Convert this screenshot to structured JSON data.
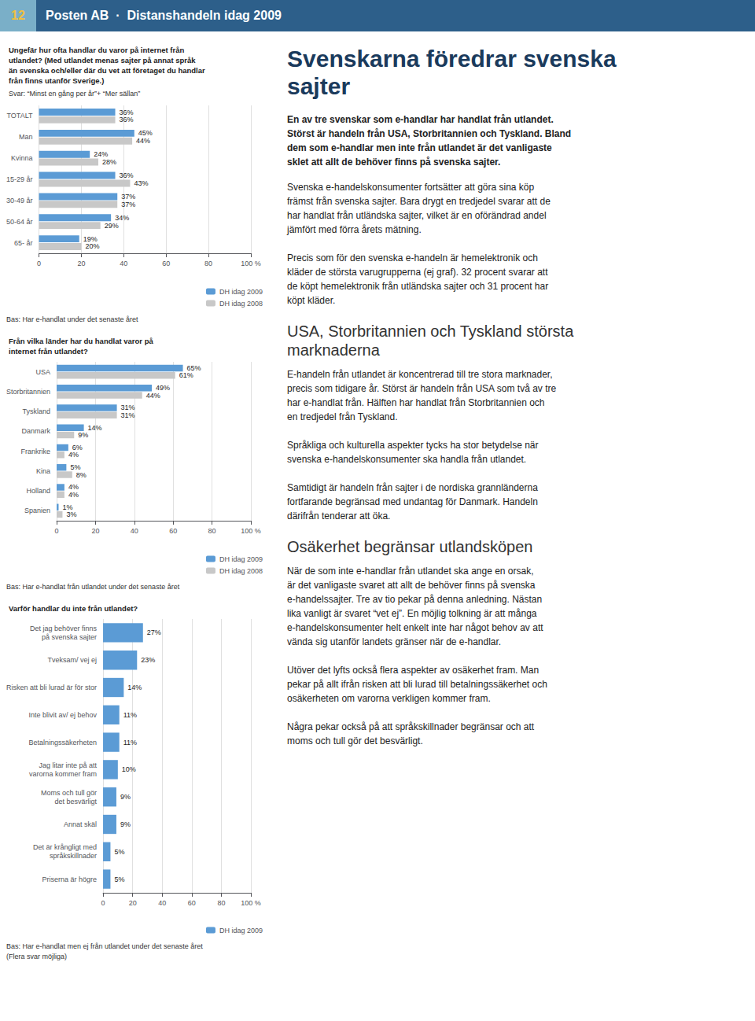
{
  "chart_data": [
    {
      "type": "bar",
      "orientation": "horizontal",
      "title": "Ungefär hur ofta handlar du varor på internet från\nutlandet? (Med utlandet menas sajter på annat språk\nän svenska och/eller där du vet att företaget du handlar\nfrån finns utanför Sverige.)",
      "subtitle": "Svar: “Minst en gång per år”+ “Mer sällan”",
      "annotations": [
        "Bas: Har e-handlat under det senaste året"
      ],
      "categories": [
        "TOTALT",
        "Man",
        "Kvinna",
        "15-29 år",
        "30-49 år",
        "50-64 år",
        "65- år"
      ],
      "series": [
        {
          "name": "DH idag 2009",
          "color": "#5b9bd5",
          "values": [
            36,
            45,
            24,
            36,
            37,
            34,
            19
          ],
          "value_labels": [
            "36%",
            "45%",
            "24%",
            "36%",
            "37%",
            "34%",
            "19%"
          ]
        },
        {
          "name": "DH idag 2008",
          "color": "#c8c8c8",
          "values": [
            36,
            44,
            28,
            43,
            37,
            29,
            20
          ],
          "value_labels": [
            "36%",
            "44%",
            "28%",
            "43%",
            "37%",
            "29%",
            "20%"
          ]
        }
      ],
      "xlim": [
        0,
        100
      ],
      "xticks": [
        0,
        20,
        40,
        60,
        80,
        {
          "value": 100,
          "label": "100 %"
        }
      ],
      "grid": true,
      "legend": "lower right",
      "data_labels": true
    },
    {
      "type": "bar",
      "orientation": "horizontal",
      "title": "Från vilka länder har du handlat varor på\ninternet från utlandet?",
      "annotations": [
        "Bas: Har e-handlat från utlandet under det senaste året"
      ],
      "categories": [
        "USA",
        "Storbritannien",
        "Tyskland",
        "Danmark",
        "Frankrike",
        "Kina",
        "Holland",
        "Spanien"
      ],
      "series": [
        {
          "name": "DH idag 2009",
          "color": "#5b9bd5",
          "values": [
            65,
            49,
            31,
            14,
            6,
            5,
            4,
            1
          ],
          "value_labels": [
            "65%",
            "49%",
            "31%",
            "14%",
            "6%",
            "5%",
            "4%",
            "1%"
          ]
        },
        {
          "name": "DH idag 2008",
          "color": "#c8c8c8",
          "values": [
            61,
            44,
            31,
            9,
            4,
            8,
            4,
            3
          ],
          "value_labels": [
            "61%",
            "44%",
            "31%",
            "9%",
            "4%",
            "8%",
            "4%",
            "3%"
          ]
        }
      ],
      "xlim": [
        0,
        100
      ],
      "xticks": [
        0,
        20,
        40,
        60,
        80,
        {
          "value": 100,
          "label": "100 %"
        }
      ],
      "grid": true,
      "legend": "lower right",
      "data_labels": true
    },
    {
      "type": "bar",
      "orientation": "horizontal",
      "title": "Varför handlar du inte från utlandet?",
      "annotations": [
        "Bas: Har e-handlat men ej från utlandet under det senaste året\n(Flera svar möjliga)"
      ],
      "categories": [
        "Det jag behöver finns\npå svenska sajter",
        "Tveksam/ vej ej",
        "Risken att bli lurad är för stor",
        "Inte blivit av/ ej behov",
        "Betalningssäkerheten",
        "Jag litar inte på att\nvarorna kommer fram",
        "Moms och tull gör\ndet besvärligt",
        "Annat skäl",
        "Det är krångligt med\nspråkskillnader",
        "Priserna är högre"
      ],
      "series": [
        {
          "name": "DH idag 2009",
          "color": "#5b9bd5",
          "values": [
            27,
            23,
            14,
            11,
            11,
            10,
            9,
            9,
            5,
            5
          ],
          "value_labels": [
            "27%",
            "23%",
            "14%",
            "11%",
            "11%",
            "10%",
            "9%",
            "9%",
            "5%",
            "5%"
          ]
        }
      ],
      "xlim": [
        0,
        100
      ],
      "xticks": [
        0,
        20,
        40,
        60,
        80,
        {
          "value": 100,
          "label": "100 %"
        }
      ],
      "grid": true,
      "legend": "lower right",
      "data_labels": true
    }
  ],
  "annotations": [
    "12",
    "Posten AB  ·  Distanshandeln idag 2009",
    "Svenskarna föredrar svenska\nsajter",
    "En av tre svenskar som e-handlar har handlat från utlandet.\nStörst är handeln från USA, Storbritannien och Tyskland. Bland\ndem som e-handlar men inte från utlandet är det vanligaste\nsklet att allt de behöver finns på svenska sajter.",
    "Svenska e-handelskonsumenter fortsätter att göra sina köp\nfrämst från svenska sajter. Bara drygt en tredjedel svarar att de\nhar handlat från utländska sajter, vilket är en oförändrad andel\njämfört med förra årets mätning.\n\nPrecis som för den svenska e-handeln är hemelektronik och\nkläder de största varugrupperna (ej graf). 32 procent svarar att\nde köpt hemelektronik från utländska sajter och 31 procent har\nköpt kläder.",
    "USA, Storbritannien och Tyskland största\nmarknaderna",
    "E-handeln från utlandet är koncentrerad till tre stora marknader,\nprecis som tidigare år. Störst är handeln från USA som två av tre\nhar e-handlat från. Hälften har handlat från Storbritannien och\nen tredjedel från Tyskland.\n\nSpråkliga och kulturella aspekter tycks ha stor betydelse när\nsvenska e-handelskonsumenter ska handla från utlandet.\n\nSamtidigt är handeln från sajter i de nordiska grannländerna\nfortfarande begränsad med undantag för Danmark. Handeln\ndärifrån tenderar att öka.",
    "Osäkerhet begränsar utlandsköpen",
    "När de som inte e-handlar från utlandet ska ange en orsak,\när det vanligaste svaret att allt de behöver finns på svenska\ne-handelssajter. Tre av tio pekar på denna anledning. Nästan\nlika vanligt är svaret “vet ej”. En möjlig tolkning är att många\ne-handelskonsumenter helt enkelt inte har något behov av att\nvända sig utanför landets gränser när de e-handlar.\n\nUtöver det lyfts också flera aspekter av osäkerhet fram. Man\npekar på allt ifrån risken att bli lurad till betalningssäkerhet och\nosäkerheten om varorna verkligen kommer fram.\n\nNågra pekar också på att språkskillnader begränsar och att\nmoms och tull gör det besvärligt."
  ]
}
